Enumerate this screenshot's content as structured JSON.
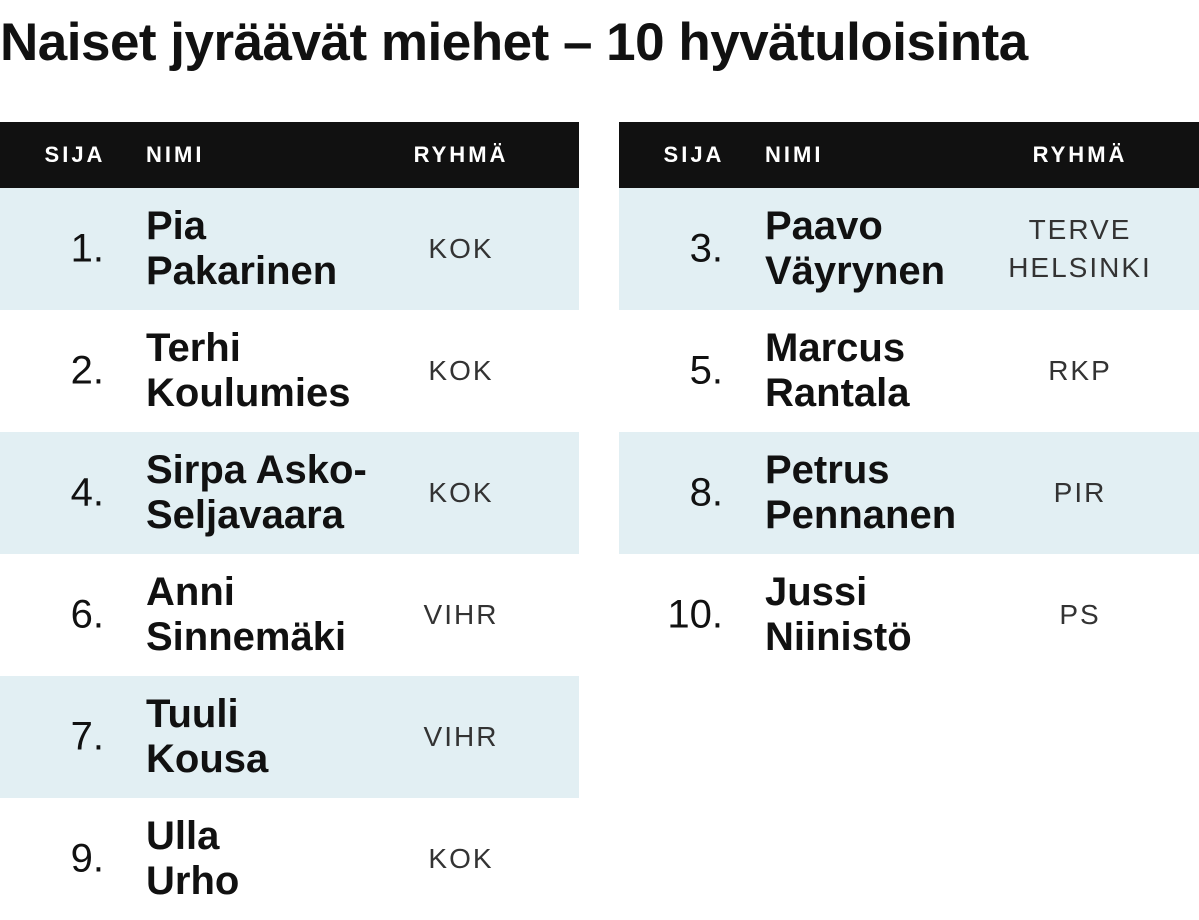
{
  "title": "Naiset jyräävät miehet – 10 hyvätuloisinta",
  "headers": {
    "rank": "SIJA",
    "name": "NIMI",
    "group": "RYHMÄ"
  },
  "colors": {
    "header_bg": "#111111",
    "header_text": "#ffffff",
    "row_shade": "#e2eff3"
  },
  "chart_data": {
    "type": "table",
    "title": "Naiset jyräävät miehet – 10 hyvätuloisinta",
    "columns": [
      "SIJA",
      "NIMI",
      "RYHMÄ"
    ],
    "left": [
      {
        "rank": "1.",
        "first": "Pia",
        "last": "Pakarinen",
        "group": "KOK",
        "group2": ""
      },
      {
        "rank": "2.",
        "first": "Terhi",
        "last": "Koulumies",
        "group": "KOK",
        "group2": ""
      },
      {
        "rank": "4.",
        "first": "Sirpa Asko-",
        "last": "Seljavaara",
        "group": "KOK",
        "group2": ""
      },
      {
        "rank": "6.",
        "first": "Anni",
        "last": "Sinnemäki",
        "group": "VIHR",
        "group2": ""
      },
      {
        "rank": "7.",
        "first": "Tuuli",
        "last": "Kousa",
        "group": "VIHR",
        "group2": ""
      },
      {
        "rank": "9.",
        "first": "Ulla",
        "last": "Urho",
        "group": "KOK",
        "group2": ""
      }
    ],
    "right": [
      {
        "rank": "3.",
        "first": "Paavo",
        "last": "Väyrynen",
        "group": "TERVE",
        "group2": "HELSINKI"
      },
      {
        "rank": "5.",
        "first": "Marcus",
        "last": "Rantala",
        "group": "RKP",
        "group2": ""
      },
      {
        "rank": "8.",
        "first": "Petrus",
        "last": "Pennanen",
        "group": "PIR",
        "group2": ""
      },
      {
        "rank": "10.",
        "first": "Jussi",
        "last": "Niinistö",
        "group": "PS",
        "group2": ""
      }
    ]
  }
}
